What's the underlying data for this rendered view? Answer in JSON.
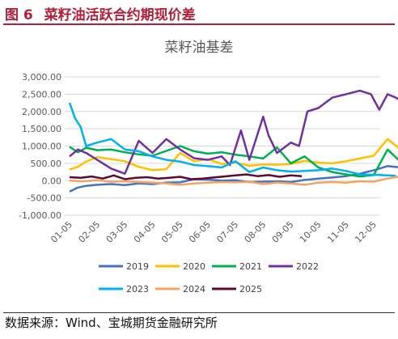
{
  "figure": {
    "label": "图 6",
    "title": "菜籽油活跃合约期现价差",
    "source": "数据来源：Wind、宝城期货金融研究所"
  },
  "colors": {
    "header": "#b0203a",
    "2019": "#4472c4",
    "2020": "#ffc000",
    "2021": "#00b050",
    "2022": "#7030a0",
    "2023": "#00b0f0",
    "2024": "#f4a460",
    "2025": "#5c0a2e"
  },
  "chart_data": {
    "type": "line",
    "title": "菜籽油基差",
    "xlabel": "",
    "ylabel": "",
    "ylim": [
      -1000,
      3000
    ],
    "yticks": [
      "3,000.00",
      "2,500.00",
      "2,000.00",
      "1,500.00",
      "1,000.00",
      "500.00",
      "0.00",
      "-500.00",
      "-1,000.00"
    ],
    "ytick_values": [
      3000,
      2500,
      2000,
      1500,
      1000,
      500,
      0,
      -500,
      -1000
    ],
    "categories": [
      "01-05",
      "02-05",
      "03-05",
      "04-05",
      "05-05",
      "06-05",
      "07-05",
      "08-05",
      "09-05",
      "10-05",
      "11-05",
      "12-05"
    ],
    "grid": "horizontal",
    "legend_position": "bottom",
    "series": [
      {
        "name": "2019",
        "x": [
          0,
          0.3,
          0.6,
          1.0,
          1.5,
          2.0,
          2.5,
          3.0,
          3.5,
          4.0,
          4.5,
          5.0,
          5.5,
          6.0,
          6.5,
          7.0,
          7.5,
          8.0,
          8.5,
          9.0,
          9.5,
          10.0,
          10.5,
          11.0,
          11.5,
          12.0
        ],
        "y": [
          -320,
          -200,
          -150,
          -120,
          -100,
          -130,
          -80,
          -100,
          -60,
          -50,
          40,
          30,
          0,
          10,
          -40,
          -30,
          -20,
          -40,
          20,
          60,
          90,
          130,
          200,
          300,
          420,
          380
        ]
      },
      {
        "name": "2020",
        "x": [
          0,
          0.3,
          0.6,
          1.0,
          1.5,
          2.0,
          2.5,
          3.0,
          3.5,
          4.0,
          4.5,
          5.0,
          5.5,
          6.0,
          6.5,
          7.0,
          7.5,
          8.0,
          8.5,
          9.0,
          9.5,
          10.0,
          10.5,
          11.0,
          11.5,
          12.0
        ],
        "y": [
          320,
          400,
          550,
          680,
          620,
          560,
          400,
          300,
          330,
          800,
          560,
          620,
          480,
          520,
          430,
          470,
          460,
          480,
          570,
          520,
          500,
          560,
          640,
          720,
          1200,
          880
        ]
      },
      {
        "name": "2021",
        "x": [
          0,
          0.3,
          0.6,
          1.0,
          1.5,
          2.0,
          2.5,
          3.0,
          3.5,
          4.0,
          4.5,
          5.0,
          5.5,
          6.0,
          6.5,
          7.0,
          7.5,
          8.0,
          8.5,
          9.0,
          9.5,
          10.0,
          10.5,
          11.0,
          11.5,
          12.0
        ],
        "y": [
          980,
          820,
          950,
          880,
          900,
          820,
          760,
          720,
          860,
          1000,
          850,
          780,
          820,
          750,
          700,
          640,
          960,
          500,
          700,
          380,
          250,
          180,
          120,
          160,
          900,
          520
        ]
      },
      {
        "name": "2022",
        "x": [
          0,
          0.3,
          0.6,
          1.0,
          1.5,
          2.0,
          2.5,
          3.0,
          3.5,
          4.0,
          4.5,
          5.0,
          5.5,
          5.8,
          6.2,
          6.5,
          7.0,
          7.2,
          7.5,
          8.0,
          8.3,
          8.6,
          9.0,
          9.5,
          10.0,
          10.5,
          10.9,
          11.2,
          11.5,
          11.8,
          12.0
        ],
        "y": [
          700,
          900,
          800,
          600,
          350,
          200,
          1150,
          800,
          1200,
          900,
          650,
          600,
          700,
          450,
          1450,
          600,
          1850,
          1300,
          800,
          1100,
          1000,
          2000,
          2100,
          2400,
          2500,
          2600,
          2500,
          2050,
          2500,
          2400,
          2300
        ]
      },
      {
        "name": "2023",
        "x": [
          0,
          0.2,
          0.4,
          0.6,
          1.0,
          1.5,
          2.0,
          2.5,
          3.0,
          3.5,
          4.0,
          4.5,
          5.0,
          5.5,
          6.0,
          6.5,
          7.0,
          7.5,
          8.0,
          8.5,
          9.0,
          9.5,
          10.0,
          10.5,
          11.0,
          11.5,
          11.8
        ],
        "y": [
          2250,
          1800,
          1550,
          1000,
          1100,
          1200,
          900,
          850,
          700,
          600,
          550,
          450,
          420,
          380,
          560,
          250,
          380,
          300,
          260,
          280,
          300,
          350,
          280,
          180,
          170,
          150,
          140
        ]
      },
      {
        "name": "2024",
        "x": [
          0,
          0.5,
          1.0,
          1.5,
          2.0,
          2.5,
          3.0,
          3.5,
          4.0,
          4.5,
          5.0,
          5.5,
          6.0,
          6.5,
          7.0,
          7.5,
          8.0,
          8.5,
          9.0,
          9.5,
          10.0,
          10.5,
          11.0,
          11.5,
          12.0
        ],
        "y": [
          0,
          -20,
          10,
          -30,
          -20,
          -40,
          -60,
          -80,
          -120,
          -80,
          -60,
          -40,
          -50,
          -30,
          -100,
          -60,
          -80,
          -120,
          -60,
          -40,
          -60,
          -20,
          -30,
          60,
          130
        ]
      },
      {
        "name": "2025",
        "x": [
          0,
          0.4,
          0.8,
          1.2,
          1.6,
          2.0,
          2.4,
          2.8,
          3.2,
          3.6,
          4.0,
          4.4,
          4.8,
          5.2,
          5.6,
          6.0,
          6.4,
          6.8,
          7.2,
          7.6,
          8.0,
          8.4
        ],
        "y": [
          100,
          80,
          120,
          60,
          150,
          40,
          80,
          100,
          60,
          80,
          110,
          40,
          60,
          90,
          120,
          150,
          180,
          130,
          160,
          110,
          150,
          130
        ]
      }
    ]
  }
}
